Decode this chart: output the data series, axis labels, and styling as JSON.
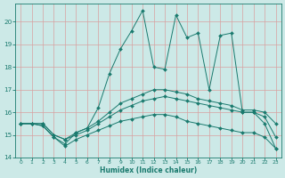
{
  "xlabel": "Humidex (Indice chaleur)",
  "xlim": [
    -0.5,
    23.5
  ],
  "ylim": [
    14.0,
    20.8
  ],
  "yticks": [
    14,
    15,
    16,
    17,
    18,
    19,
    20
  ],
  "xticks": [
    0,
    1,
    2,
    3,
    4,
    5,
    6,
    7,
    8,
    9,
    10,
    11,
    12,
    13,
    14,
    15,
    16,
    17,
    18,
    19,
    20,
    21,
    22,
    23
  ],
  "bg_color": "#cce9e7",
  "line_color": "#1a7a6e",
  "grid_color": "#b8d8d6",
  "line_main_x": [
    0,
    1,
    2,
    3,
    4,
    5,
    6,
    7,
    8,
    9,
    10,
    11,
    12,
    13,
    14,
    15,
    16,
    17,
    18,
    19,
    20,
    21,
    22,
    23
  ],
  "line_main_y": [
    15.5,
    15.5,
    15.4,
    14.9,
    14.6,
    15.1,
    15.3,
    16.2,
    17.7,
    18.8,
    19.6,
    20.5,
    18.0,
    17.9,
    20.3,
    19.3,
    19.5,
    17.0,
    19.4,
    19.5,
    16.0,
    16.0,
    15.5,
    14.4
  ],
  "line_upper_x": [
    0,
    1,
    2,
    3,
    4,
    5,
    6,
    7,
    8,
    9,
    10,
    11,
    12,
    13,
    14,
    15,
    16,
    17,
    18,
    19,
    20,
    21,
    22,
    23
  ],
  "line_upper_y": [
    15.5,
    15.5,
    15.5,
    15.0,
    14.8,
    15.1,
    15.3,
    15.6,
    16.0,
    16.4,
    16.6,
    16.8,
    17.0,
    17.0,
    16.9,
    16.8,
    16.6,
    16.5,
    16.4,
    16.3,
    16.1,
    16.1,
    16.0,
    15.5
  ],
  "line_mid_x": [
    0,
    1,
    2,
    3,
    4,
    5,
    6,
    7,
    8,
    9,
    10,
    11,
    12,
    13,
    14,
    15,
    16,
    17,
    18,
    19,
    20,
    21,
    22,
    23
  ],
  "line_mid_y": [
    15.5,
    15.5,
    15.5,
    15.0,
    14.8,
    15.0,
    15.2,
    15.5,
    15.8,
    16.1,
    16.3,
    16.5,
    16.6,
    16.7,
    16.6,
    16.5,
    16.4,
    16.3,
    16.2,
    16.1,
    16.0,
    16.0,
    15.8,
    14.9
  ],
  "line_lower_x": [
    0,
    1,
    2,
    3,
    4,
    5,
    6,
    7,
    8,
    9,
    10,
    11,
    12,
    13,
    14,
    15,
    16,
    17,
    18,
    19,
    20,
    21,
    22,
    23
  ],
  "line_lower_y": [
    15.5,
    15.5,
    15.4,
    14.9,
    14.5,
    14.8,
    15.0,
    15.2,
    15.4,
    15.6,
    15.7,
    15.8,
    15.9,
    15.9,
    15.8,
    15.6,
    15.5,
    15.4,
    15.3,
    15.2,
    15.1,
    15.1,
    14.9,
    14.4
  ]
}
